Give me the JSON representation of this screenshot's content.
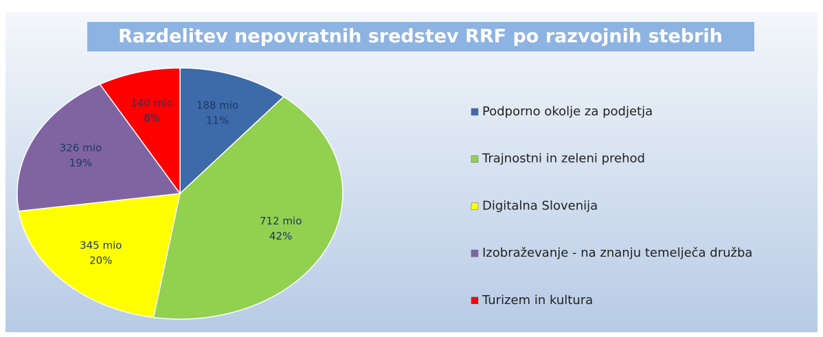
{
  "chart_data": {
    "type": "pie",
    "title": "Razdelitev nepovratnih sredstev RRF po razvojnih stebrih",
    "categories": [
      "Podporno okolje za podjetja",
      "Trajnostni in zeleni prehod",
      "Digitalna Slovenija",
      "Izobraževanje - na znanju temelječa družba",
      "Turizem in  kultura"
    ],
    "values": [
      188,
      712,
      345,
      326,
      140
    ],
    "value_labels": [
      "188 mio",
      "712 mio",
      "345 mio",
      "326 mio",
      "140 mio"
    ],
    "percent_labels": [
      "11%",
      "42%",
      "20%",
      "19%",
      "8%"
    ],
    "colors": [
      "#3d6aa9",
      "#92d050",
      "#ffff00",
      "#8064a2",
      "#ff0000"
    ],
    "legend": "right"
  }
}
